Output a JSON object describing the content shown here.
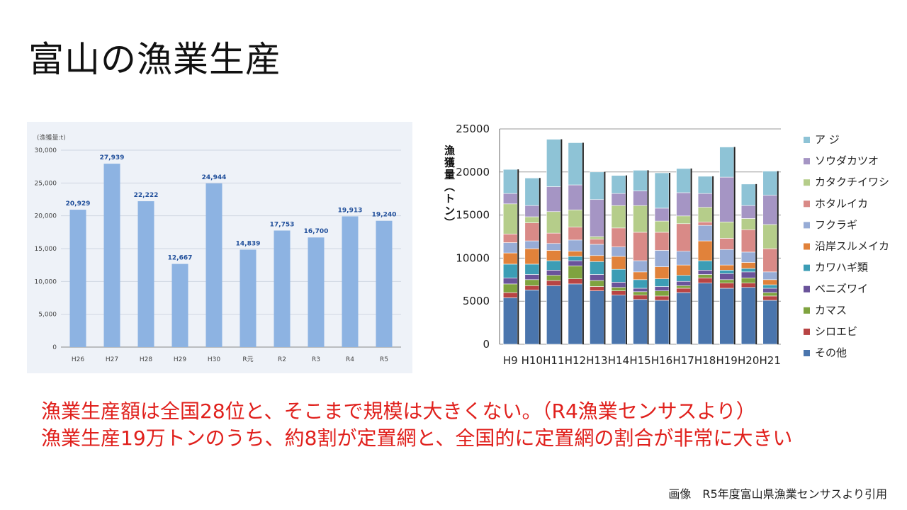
{
  "slide": {
    "title": "富山の漁業生産",
    "caption_line1": "漁業生産額は全国28位と、そこまで規模は大きくない。（R4漁業センサスより）",
    "caption_line2": "漁業生産19万トンのうち、約8割が定置網と、全国的に定置網の割合が非常に大きい",
    "source": "画像　R5年度富山県漁業センサスより引用"
  },
  "colors": {
    "bar_left": "#8db3e2",
    "label_left": "#1f4e9a",
    "caption": "#e0201c"
  },
  "chart_data": [
    {
      "type": "bar",
      "unit_label": "(漁獲量:t)",
      "categories": [
        "H26",
        "H27",
        "H28",
        "H29",
        "H30",
        "R元",
        "R2",
        "R3",
        "R4",
        "R5"
      ],
      "values": [
        20929,
        27939,
        22222,
        12667,
        24944,
        14839,
        17753,
        16700,
        19913,
        19240
      ],
      "value_labels": [
        "20,929",
        "27,939",
        "22,222",
        "12,667",
        "24,944",
        "14,839",
        "17,753",
        "16,700",
        "19,913",
        "19,240"
      ],
      "yticks": [
        0,
        5000,
        10000,
        15000,
        20000,
        25000,
        30000
      ],
      "ytick_labels": [
        "0",
        "5,000",
        "10,000",
        "15,000",
        "20,000",
        "25,000",
        "30,000"
      ],
      "ylim": [
        0,
        30000
      ],
      "grid": true
    },
    {
      "type": "bar",
      "stacked": true,
      "ylabel": "漁獲量（トン）",
      "categories": [
        "H9",
        "H10",
        "H11",
        "H12",
        "H13",
        "H14",
        "H15",
        "H16",
        "H17",
        "H18",
        "H19",
        "H20",
        "H21"
      ],
      "yticks": [
        0,
        5000,
        10000,
        15000,
        20000,
        25000
      ],
      "ytick_labels": [
        "0",
        "5000",
        "10000",
        "15000",
        "20000",
        "25000"
      ],
      "ylim": [
        0,
        25000
      ],
      "legend_position": "right",
      "series": [
        {
          "name": "その他",
          "color": "#4a75ad",
          "values": [
            5400,
            6300,
            6800,
            7000,
            6200,
            5700,
            5200,
            5100,
            6000,
            7100,
            6500,
            6600,
            5100
          ]
        },
        {
          "name": "シロエビ",
          "color": "#b84444",
          "values": [
            600,
            500,
            600,
            600,
            500,
            500,
            500,
            500,
            500,
            600,
            600,
            500,
            500
          ]
        },
        {
          "name": "カマス",
          "color": "#7fa33f",
          "values": [
            1000,
            700,
            600,
            1500,
            700,
            400,
            400,
            600,
            300,
            400,
            400,
            600,
            400
          ]
        },
        {
          "name": "ベニズワイ",
          "color": "#6a539a",
          "values": [
            700,
            600,
            600,
            600,
            700,
            600,
            400,
            500,
            500,
            500,
            700,
            700,
            500
          ]
        },
        {
          "name": "カワハギ類",
          "color": "#3c9db5",
          "values": [
            1600,
            1200,
            1100,
            500,
            1500,
            1500,
            1000,
            900,
            700,
            1100,
            400,
            400,
            400
          ]
        },
        {
          "name": "沿岸スルメイカ",
          "color": "#e1823a",
          "values": [
            1300,
            1800,
            1200,
            600,
            700,
            1500,
            900,
            1400,
            1200,
            2300,
            600,
            700,
            600
          ]
        },
        {
          "name": "フクラギ",
          "color": "#97acd6",
          "values": [
            1200,
            900,
            800,
            1300,
            1300,
            1100,
            1300,
            1900,
            1600,
            1800,
            1800,
            1200,
            900
          ]
        },
        {
          "name": "ホタルイカ",
          "color": "#d98a87",
          "values": [
            1000,
            2100,
            1200,
            1500,
            600,
            2200,
            3300,
            2100,
            3200,
            400,
            1300,
            2600,
            2700
          ]
        },
        {
          "name": "カタクチイワシ",
          "color": "#b5cd8a",
          "values": [
            3500,
            700,
            2500,
            2000,
            300,
            2600,
            3100,
            1300,
            900,
            1700,
            1900,
            1300,
            2800
          ]
        },
        {
          "name": "ソウダカツオ",
          "color": "#a595c4",
          "values": [
            1200,
            1300,
            2900,
            2900,
            4300,
            1400,
            1700,
            1500,
            2700,
            1600,
            5200,
            1500,
            3400
          ]
        },
        {
          "name": "ア ジ",
          "color": "#8ec3d6",
          "values": [
            2800,
            3200,
            5500,
            4900,
            3200,
            2100,
            2400,
            4100,
            2800,
            2000,
            3500,
            2500,
            2800
          ]
        }
      ]
    }
  ]
}
